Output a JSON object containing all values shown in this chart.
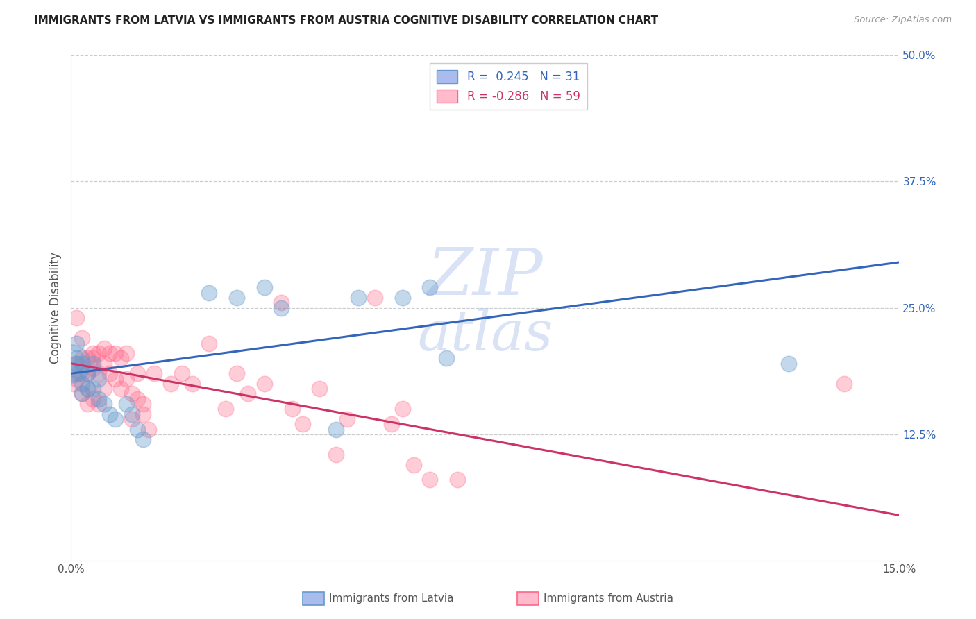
{
  "title": "IMMIGRANTS FROM LATVIA VS IMMIGRANTS FROM AUSTRIA COGNITIVE DISABILITY CORRELATION CHART",
  "source": "Source: ZipAtlas.com",
  "xlabel_label": "Immigrants from Latvia",
  "xlabel_label2": "Immigrants from Austria",
  "ylabel": "Cognitive Disability",
  "xlim": [
    0.0,
    0.15
  ],
  "ylim": [
    0.0,
    0.5
  ],
  "r_latvia": 0.245,
  "n_latvia": 31,
  "r_austria": -0.286,
  "n_austria": 59,
  "color_latvia": "#6699CC",
  "color_austria": "#FF6688",
  "background_color": "#ffffff",
  "latvia_x": [
    0.0005,
    0.001,
    0.001,
    0.0015,
    0.002,
    0.002,
    0.002,
    0.003,
    0.003,
    0.004,
    0.004,
    0.005,
    0.005,
    0.006,
    0.007,
    0.008,
    0.01,
    0.011,
    0.012,
    0.013,
    0.025,
    0.03,
    0.035,
    0.038,
    0.048,
    0.052,
    0.06,
    0.065,
    0.068,
    0.13,
    0.001
  ],
  "latvia_y": [
    0.185,
    0.215,
    0.2,
    0.185,
    0.195,
    0.175,
    0.165,
    0.185,
    0.17,
    0.195,
    0.17,
    0.18,
    0.16,
    0.155,
    0.145,
    0.14,
    0.155,
    0.145,
    0.13,
    0.12,
    0.265,
    0.26,
    0.27,
    0.25,
    0.13,
    0.26,
    0.26,
    0.27,
    0.2,
    0.195,
    0.195
  ],
  "latvia_large_x": [
    0.0
  ],
  "latvia_large_y": [
    0.195
  ],
  "austria_x": [
    0.0005,
    0.001,
    0.001,
    0.001,
    0.002,
    0.002,
    0.002,
    0.002,
    0.003,
    0.003,
    0.003,
    0.003,
    0.004,
    0.004,
    0.004,
    0.004,
    0.005,
    0.005,
    0.005,
    0.006,
    0.006,
    0.006,
    0.007,
    0.007,
    0.008,
    0.008,
    0.009,
    0.009,
    0.01,
    0.01,
    0.011,
    0.011,
    0.012,
    0.012,
    0.013,
    0.013,
    0.014,
    0.015,
    0.018,
    0.02,
    0.022,
    0.025,
    0.028,
    0.03,
    0.032,
    0.035,
    0.038,
    0.04,
    0.042,
    0.045,
    0.048,
    0.05,
    0.055,
    0.058,
    0.06,
    0.062,
    0.065,
    0.07,
    0.14
  ],
  "austria_y": [
    0.175,
    0.24,
    0.195,
    0.18,
    0.2,
    0.22,
    0.185,
    0.165,
    0.2,
    0.185,
    0.17,
    0.155,
    0.2,
    0.205,
    0.19,
    0.16,
    0.205,
    0.185,
    0.155,
    0.21,
    0.195,
    0.17,
    0.205,
    0.185,
    0.205,
    0.18,
    0.2,
    0.17,
    0.205,
    0.18,
    0.165,
    0.14,
    0.185,
    0.16,
    0.145,
    0.155,
    0.13,
    0.185,
    0.175,
    0.185,
    0.175,
    0.215,
    0.15,
    0.185,
    0.165,
    0.175,
    0.255,
    0.15,
    0.135,
    0.17,
    0.105,
    0.14,
    0.26,
    0.135,
    0.15,
    0.095,
    0.08,
    0.08,
    0.175
  ],
  "line_lv_x0": 0.0,
  "line_lv_y0": 0.185,
  "line_lv_x1": 0.15,
  "line_lv_y1": 0.295,
  "line_at_x0": 0.0,
  "line_at_y0": 0.195,
  "line_at_x1": 0.15,
  "line_at_y1": 0.045
}
